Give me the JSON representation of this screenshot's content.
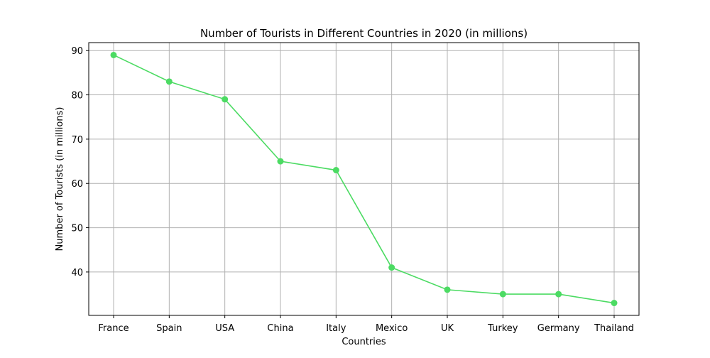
{
  "chart_data": {
    "type": "line",
    "title": "Number of Tourists in Different Countries in 2020 (in millions)",
    "xlabel": "Countries",
    "ylabel": "Number of Tourists (in millions)",
    "categories": [
      "France",
      "Spain",
      "USA",
      "China",
      "Italy",
      "Mexico",
      "UK",
      "Turkey",
      "Germany",
      "Thailand"
    ],
    "values": [
      89,
      83,
      79,
      65,
      63,
      41,
      36,
      35,
      35,
      33
    ],
    "ylim": [
      30.2,
      91.8
    ],
    "yticks": [
      40,
      50,
      60,
      70,
      80,
      90
    ],
    "grid": true,
    "line_color": "#4cdb63",
    "marker": "circle"
  }
}
